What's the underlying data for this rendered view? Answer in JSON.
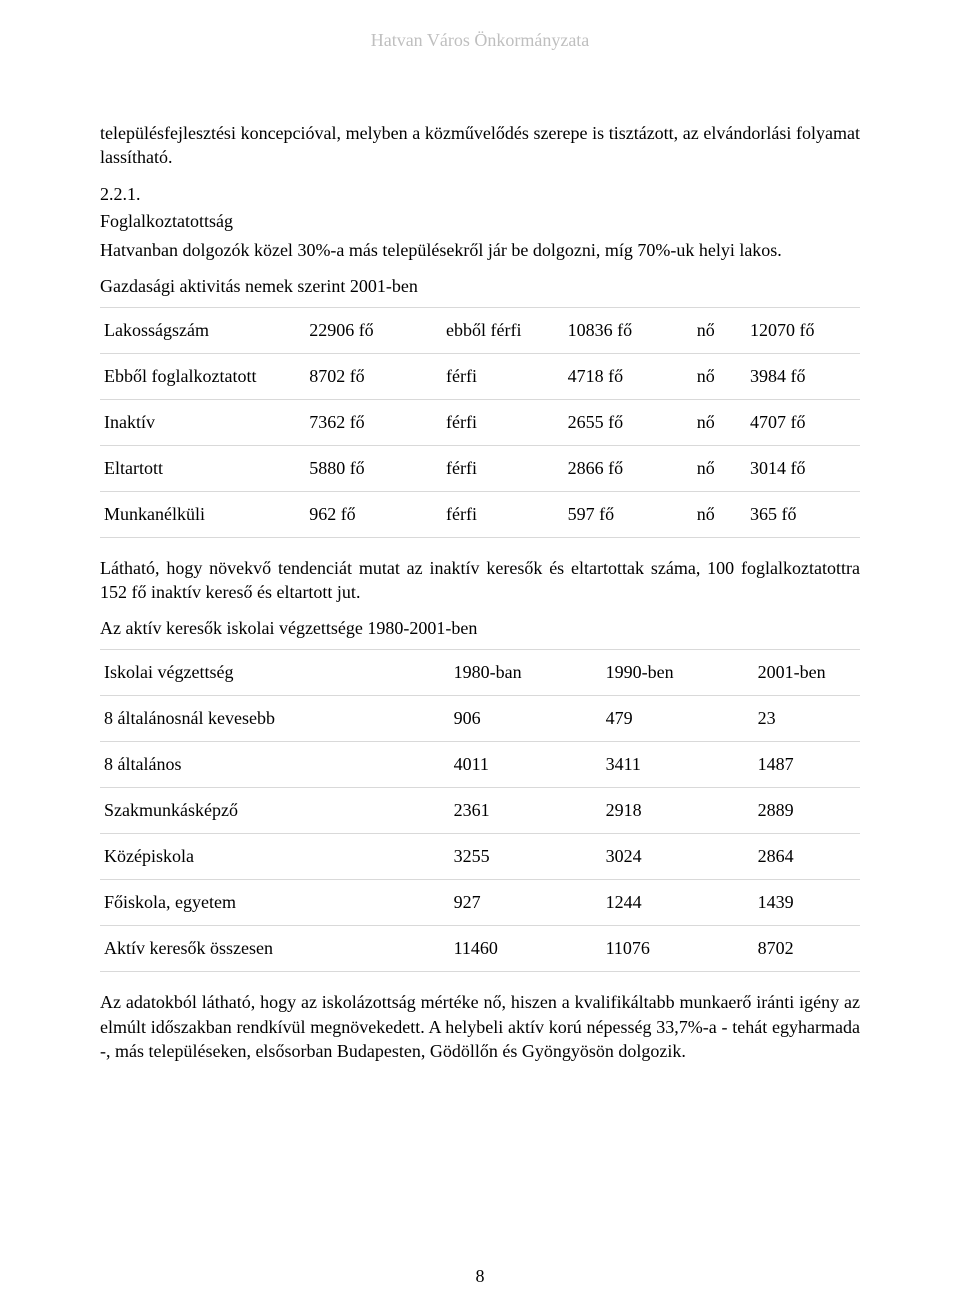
{
  "header": "Hatvan Város Önkormányzata",
  "intro_para": "településfejlesztési koncepcióval, melyben a közművelődés szerepe is tisztázott, az elvándorlási folyamat lassítható.",
  "section": {
    "number": "2.2.1.",
    "title": "Foglalkoztatottság"
  },
  "employment_para": "Hatvanban dolgozók közel 30%-a más településekről jár be dolgozni, míg 70%-uk helyi lakos.",
  "table1_caption": "Gazdasági aktivitás nemek szerint 2001-ben",
  "table1": {
    "rows": [
      {
        "label": "Lakosságszám",
        "total": "22906 fő",
        "male_label": "ebből férfi",
        "male": "10836 fő",
        "sex": "nő",
        "female": "12070 fő"
      },
      {
        "label": "Ebből foglalkoztatott",
        "total": "8702 fő",
        "male_label": "férfi",
        "male": "4718 fő",
        "sex": "nő",
        "female": "3984 fő"
      },
      {
        "label": "Inaktív",
        "total": "7362 fő",
        "male_label": "férfi",
        "male": "2655 fő",
        "sex": "nő",
        "female": "4707 fő"
      },
      {
        "label": "Eltartott",
        "total": "5880 fő",
        "male_label": "férfi",
        "male": "2866 fő",
        "sex": "nő",
        "female": "3014 fő"
      },
      {
        "label": "Munkanélküli",
        "total": "962 fő",
        "male_label": "férfi",
        "male": "597 fő",
        "sex": "nő",
        "female": "365 fő"
      }
    ]
  },
  "after_t1_para": "Látható, hogy növekvő tendenciát mutat az inaktív keresők és eltartottak száma, 100 foglalkoztatottra 152 fő inaktív kereső és eltartott jut.",
  "table2_caption": "Az aktív keresők iskolai végzettsége 1980-2001-ben",
  "table2": {
    "header": {
      "label": "Iskolai végzettség",
      "y1": "1980-ban",
      "y2": "1990-ben",
      "y3": "2001-ben"
    },
    "rows": [
      {
        "label": "8 általánosnál kevesebb",
        "y1": "906",
        "y2": "479",
        "y3": "23"
      },
      {
        "label": "8 általános",
        "y1": "4011",
        "y2": "3411",
        "y3": "1487"
      },
      {
        "label": "Szakmunkásképző",
        "y1": "2361",
        "y2": "2918",
        "y3": "2889"
      },
      {
        "label": "Középiskola",
        "y1": "3255",
        "y2": "3024",
        "y3": "2864"
      },
      {
        "label": "Főiskola, egyetem",
        "y1": "927",
        "y2": "1244",
        "y3": "1439"
      },
      {
        "label": "Aktív keresők összesen",
        "y1": "11460",
        "y2": "11076",
        "y3": "8702"
      }
    ]
  },
  "closing_para": "Az adatokból látható, hogy az iskolázottság mértéke nő, hiszen a kvalifikáltabb munkaerő iránti igény az elmúlt időszakban rendkívül megnövekedett. A helybeli aktív korú népesség 33,7%-a - tehát egyharmada -, más településeken, elsősorban Budapesten, Gödöllőn és Gyöngyösön dolgozik.",
  "page_number": "8"
}
